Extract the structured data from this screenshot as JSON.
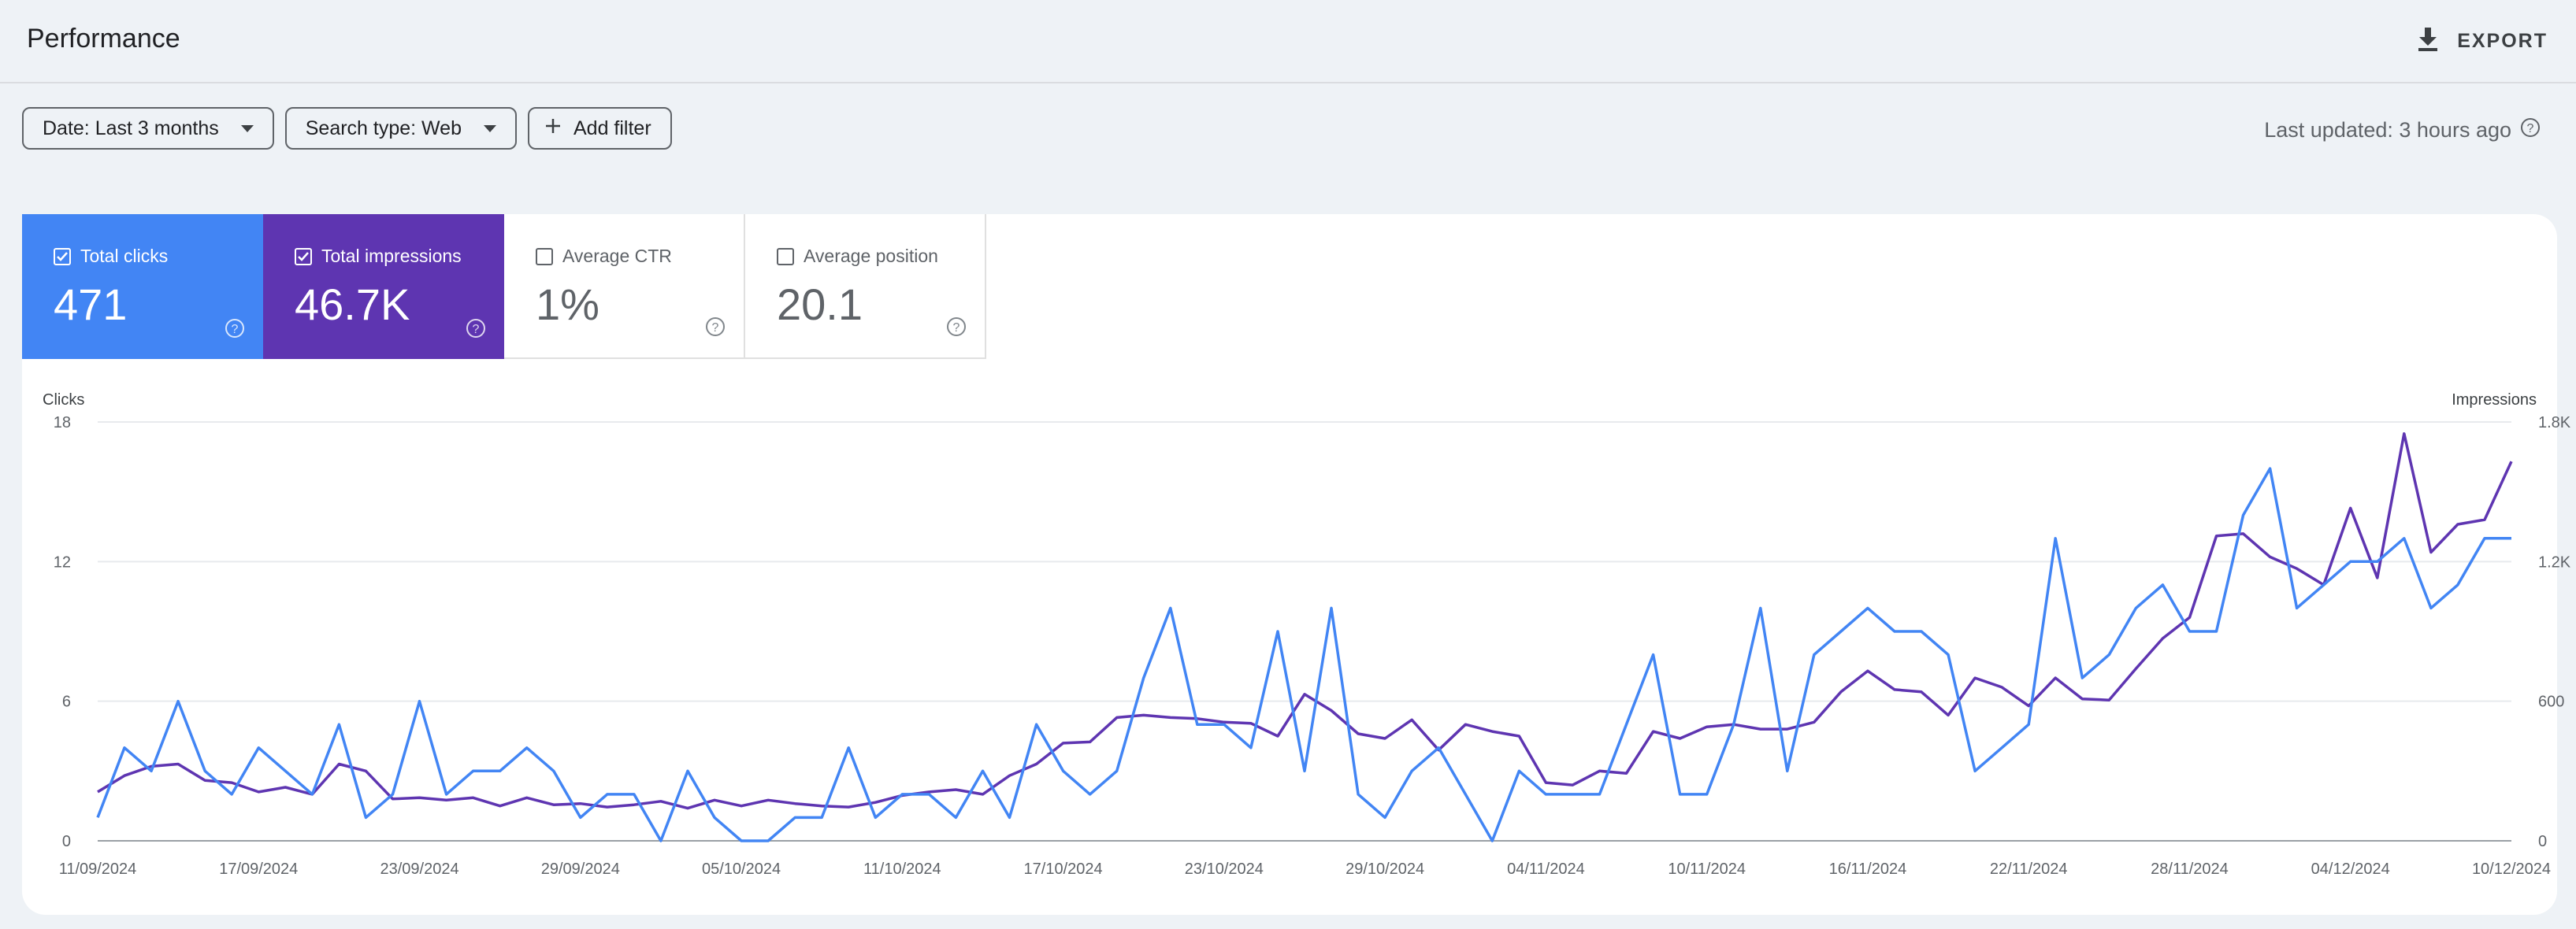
{
  "header": {
    "title": "Performance",
    "export_label": "EXPORT"
  },
  "filters": {
    "date": "Date: Last 3 months",
    "search_type": "Search type: Web",
    "add_filter": "Add filter",
    "last_updated": "Last updated: 3 hours ago"
  },
  "metrics": [
    {
      "label": "Total clicks",
      "value": "471",
      "selected": true,
      "color": "#4285f4"
    },
    {
      "label": "Total impressions",
      "value": "46.7K",
      "selected": true,
      "color": "#5e35b1"
    },
    {
      "label": "Average CTR",
      "value": "1%",
      "selected": false
    },
    {
      "label": "Average position",
      "value": "20.1",
      "selected": false
    }
  ],
  "chart_data": {
    "type": "line",
    "left_axis_label": "Clicks",
    "right_axis_label": "Impressions",
    "left_ticks": [
      "0",
      "6",
      "12",
      "18"
    ],
    "right_ticks": [
      "0",
      "600",
      "1.2K",
      "1.8K"
    ],
    "left_range": [
      0,
      18
    ],
    "right_range": [
      0,
      1800
    ],
    "x_tick_labels": [
      "11/09/2024",
      "17/09/2024",
      "23/09/2024",
      "29/09/2024",
      "05/10/2024",
      "11/10/2024",
      "17/10/2024",
      "23/10/2024",
      "29/10/2024",
      "04/11/2024",
      "10/11/2024",
      "16/11/2024",
      "22/11/2024",
      "28/11/2024",
      "04/12/2024",
      "10/12/2024"
    ],
    "x_start": "11/09/2024",
    "x_end": "10/12/2024",
    "grid": true,
    "series": [
      {
        "name": "Total clicks",
        "axis": "left",
        "color": "#4285f4",
        "values": [
          1,
          4,
          3,
          6,
          3,
          2,
          4,
          3,
          2,
          5,
          1,
          2,
          6,
          2,
          3,
          3,
          4,
          3,
          1,
          2,
          2,
          0,
          3,
          1,
          0,
          0,
          1,
          1,
          4,
          1,
          2,
          2,
          1,
          3,
          1,
          5,
          3,
          2,
          3,
          7,
          10,
          5,
          5,
          4,
          9,
          3,
          10,
          2,
          1,
          3,
          4,
          2,
          0,
          3,
          2,
          2,
          2,
          5,
          8,
          2,
          2,
          5,
          10,
          3,
          8,
          9,
          10,
          9,
          9,
          8,
          3,
          4,
          5,
          13,
          7,
          8,
          10,
          11,
          9,
          9,
          14,
          16,
          10,
          11,
          12,
          12,
          13,
          10,
          11,
          13,
          13
        ]
      },
      {
        "name": "Total impressions",
        "axis": "right",
        "color": "#5e35b1",
        "values": [
          210,
          280,
          320,
          330,
          260,
          250,
          210,
          230,
          200,
          330,
          300,
          180,
          185,
          175,
          185,
          150,
          185,
          155,
          160,
          145,
          155,
          170,
          140,
          175,
          150,
          175,
          160,
          150,
          145,
          165,
          195,
          210,
          220,
          200,
          280,
          330,
          420,
          425,
          530,
          540,
          530,
          525,
          510,
          505,
          450,
          630,
          560,
          460,
          440,
          520,
          390,
          500,
          470,
          450,
          250,
          240,
          300,
          290,
          470,
          440,
          490,
          500,
          480,
          480,
          510,
          640,
          730,
          650,
          640,
          540,
          700,
          660,
          580,
          700,
          610,
          605,
          740,
          870,
          960,
          1310,
          1320,
          1220,
          1170,
          1100,
          1430,
          1130,
          1750,
          1240,
          1360,
          1380,
          1630
        ]
      }
    ]
  }
}
